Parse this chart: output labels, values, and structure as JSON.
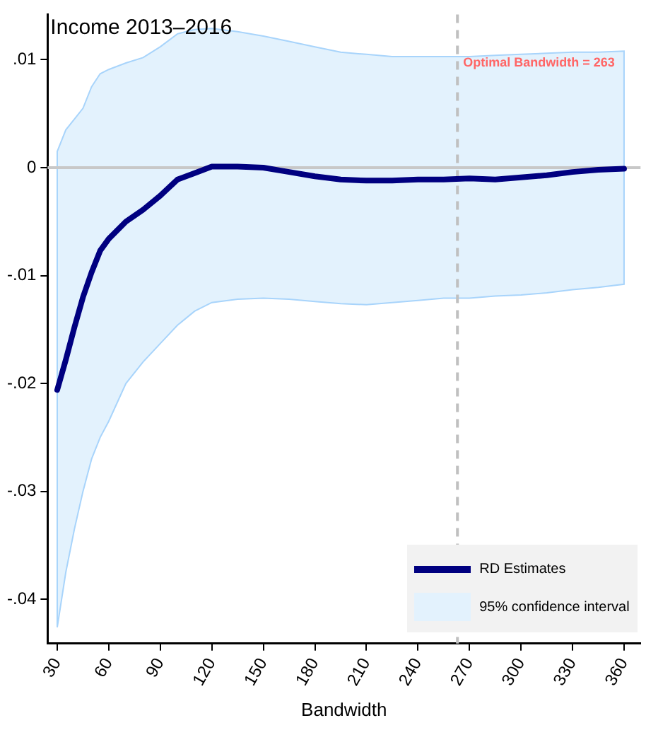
{
  "chart_data": {
    "type": "line",
    "title": "Income 2013–2016",
    "xlabel": "Bandwidth",
    "x": [
      30,
      35,
      40,
      45,
      50,
      55,
      60,
      70,
      80,
      90,
      100,
      110,
      120,
      135,
      150,
      165,
      180,
      195,
      210,
      225,
      240,
      255,
      270,
      285,
      300,
      315,
      330,
      345,
      360
    ],
    "series": [
      {
        "name": "RD Estimates",
        "color": "#000080",
        "values": [
          -0.0206,
          -0.0178,
          -0.0148,
          -0.012,
          -0.0097,
          -0.0077,
          -0.0066,
          -0.005,
          -0.0039,
          -0.0026,
          -0.0011,
          -0.0005,
          0.0001,
          0.0001,
          0,
          -0.0004,
          -0.0008,
          -0.0011,
          -0.0012,
          -0.0012,
          -0.0011,
          -0.0011,
          -0.001,
          -0.0011,
          -0.0009,
          -0.0007,
          -0.0004,
          -0.0002,
          -0.0001
        ],
        "lower": [
          -0.0426,
          -0.0375,
          -0.0335,
          -0.03,
          -0.027,
          -0.025,
          -0.0235,
          -0.02,
          -0.018,
          -0.0163,
          -0.0146,
          -0.0133,
          -0.0125,
          -0.0122,
          -0.0121,
          -0.0122,
          -0.0124,
          -0.0126,
          -0.0127,
          -0.0125,
          -0.0123,
          -0.0121,
          -0.0121,
          -0.0119,
          -0.0118,
          -0.0116,
          -0.0113,
          -0.0111,
          -0.0108
        ],
        "upper": [
          0.0015,
          0.0035,
          0.0045,
          0.0055,
          0.0075,
          0.0087,
          0.0091,
          0.0097,
          0.0102,
          0.0112,
          0.0124,
          0.0128,
          0.0129,
          0.0126,
          0.0122,
          0.0117,
          0.0112,
          0.0107,
          0.0105,
          0.0103,
          0.0103,
          0.0103,
          0.0103,
          0.0104,
          0.0105,
          0.0106,
          0.0107,
          0.0107,
          0.0108
        ]
      }
    ],
    "annotations": [
      "95% confidence interval"
    ],
    "ref_lines": [
      {
        "axis": "x",
        "value": 263,
        "label": "Optimal Bandwidth = 263",
        "color": "#c0c0c0",
        "line_style": "dashed"
      },
      {
        "axis": "y",
        "value": 0,
        "color": "#c8c8c8",
        "line_style": "solid"
      }
    ],
    "xlim": [
      24.4,
      369.6
    ],
    "ylim": [
      -0.0441,
      0.0142
    ],
    "xticks": [
      30,
      60,
      90,
      120,
      150,
      180,
      210,
      240,
      270,
      300,
      330,
      360
    ],
    "yticks": [
      {
        "value": -0.04,
        "label": "-.04"
      },
      {
        "value": -0.03,
        "label": "-.03"
      },
      {
        "value": -0.02,
        "label": "-.02"
      },
      {
        "value": -0.01,
        "label": "-.01"
      },
      {
        "value": 0,
        "label": "0"
      },
      {
        "value": 0.01,
        "label": ".01"
      }
    ],
    "grid": false,
    "legend": "bottom right",
    "line_style": "solid",
    "marker": "none"
  }
}
